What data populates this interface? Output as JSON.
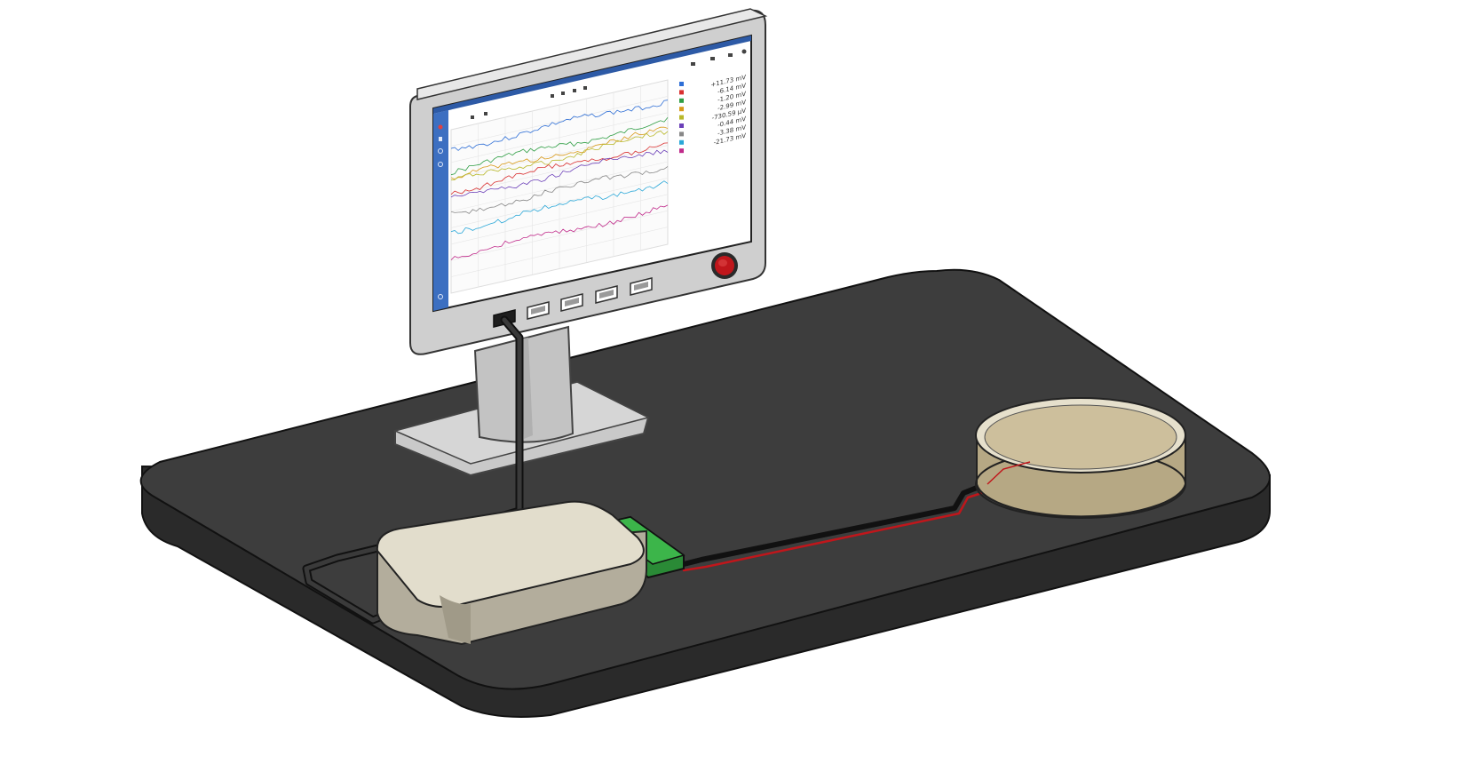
{
  "screen": {
    "channels": [
      {
        "value": "+11.73 mV",
        "color": "#2f6fd6"
      },
      {
        "value": "-6.14 mV",
        "color": "#d93030"
      },
      {
        "value": "-1.20 mV",
        "color": "#2f9e44"
      },
      {
        "value": "-2.99 mV",
        "color": "#d99a1a"
      },
      {
        "value": "-730.59 µV",
        "color": "#b8b82a"
      },
      {
        "value": "-0.44 mV",
        "color": "#6b3fb8"
      },
      {
        "value": "-3.38 mV",
        "color": "#888888"
      },
      {
        "value": "-21.73 mV",
        "color": "#2aa7d8"
      },
      {
        "value": "",
        "color": "#c02a8a"
      }
    ]
  },
  "colors": {
    "table": "#3a3a3a",
    "monitor_frame": "#c8c8c8",
    "enclosure": "#ded9c8",
    "pcb": "#3cb54a",
    "dish_liquid": "#cdbf9c",
    "power_button": "#c0161b",
    "cable_red": "#c0161b"
  }
}
